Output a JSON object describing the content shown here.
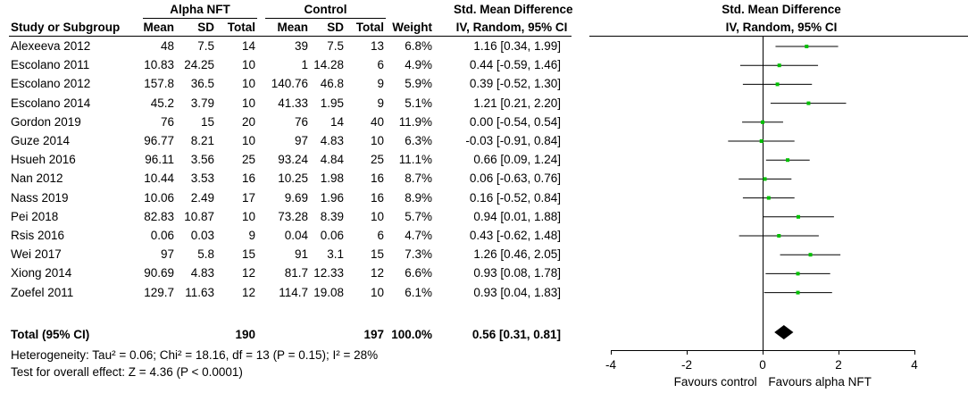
{
  "headers": {
    "group_alpha": "Alpha NFT",
    "group_control": "Control",
    "smd_left": "Std. Mean Difference",
    "smd_right": "Std. Mean Difference",
    "method_left": "IV, Random, 95% CI",
    "method_right": "IV, Random, 95% CI",
    "columns": [
      "Study or Subgroup",
      "Mean",
      "SD",
      "Total",
      "Mean",
      "SD",
      "Total",
      "Weight"
    ]
  },
  "studies": [
    {
      "name": "Alexeeva 2012",
      "a_mean": "48",
      "a_sd": "7.5",
      "a_total": "14",
      "c_mean": "39",
      "c_sd": "7.5",
      "c_total": "13",
      "weight": "6.8%",
      "ci": "1.16 [0.34, 1.99]"
    },
    {
      "name": "Escolano 2011",
      "a_mean": "10.83",
      "a_sd": "24.25",
      "a_total": "10",
      "c_mean": "1",
      "c_sd": "14.28",
      "c_total": "6",
      "weight": "4.9%",
      "ci": "0.44 [-0.59, 1.46]"
    },
    {
      "name": "Escolano 2012",
      "a_mean": "157.8",
      "a_sd": "36.5",
      "a_total": "10",
      "c_mean": "140.76",
      "c_sd": "46.8",
      "c_total": "9",
      "weight": "5.9%",
      "ci": "0.39 [-0.52, 1.30]"
    },
    {
      "name": "Escolano 2014",
      "a_mean": "45.2",
      "a_sd": "3.79",
      "a_total": "10",
      "c_mean": "41.33",
      "c_sd": "1.95",
      "c_total": "9",
      "weight": "5.1%",
      "ci": "1.21 [0.21, 2.20]"
    },
    {
      "name": "Gordon 2019",
      "a_mean": "76",
      "a_sd": "15",
      "a_total": "20",
      "c_mean": "76",
      "c_sd": "14",
      "c_total": "40",
      "weight": "11.9%",
      "ci": "0.00 [-0.54, 0.54]"
    },
    {
      "name": "Guze 2014",
      "a_mean": "96.77",
      "a_sd": "8.21",
      "a_total": "10",
      "c_mean": "97",
      "c_sd": "4.83",
      "c_total": "10",
      "weight": "6.3%",
      "ci": "-0.03 [-0.91, 0.84]"
    },
    {
      "name": "Hsueh 2016",
      "a_mean": "96.11",
      "a_sd": "3.56",
      "a_total": "25",
      "c_mean": "93.24",
      "c_sd": "4.84",
      "c_total": "25",
      "weight": "11.1%",
      "ci": "0.66 [0.09, 1.24]"
    },
    {
      "name": "Nan 2012",
      "a_mean": "10.44",
      "a_sd": "3.53",
      "a_total": "16",
      "c_mean": "10.25",
      "c_sd": "1.98",
      "c_total": "16",
      "weight": "8.7%",
      "ci": "0.06 [-0.63, 0.76]"
    },
    {
      "name": "Nass 2019",
      "a_mean": "10.06",
      "a_sd": "2.49",
      "a_total": "17",
      "c_mean": "9.69",
      "c_sd": "1.96",
      "c_total": "16",
      "weight": "8.9%",
      "ci": "0.16 [-0.52, 0.84]"
    },
    {
      "name": "Pei 2018",
      "a_mean": "82.83",
      "a_sd": "10.87",
      "a_total": "10",
      "c_mean": "73.28",
      "c_sd": "8.39",
      "c_total": "10",
      "weight": "5.7%",
      "ci": "0.94 [0.01, 1.88]"
    },
    {
      "name": "Rsis 2016",
      "a_mean": "0.06",
      "a_sd": "0.03",
      "a_total": "9",
      "c_mean": "0.04",
      "c_sd": "0.06",
      "c_total": "6",
      "weight": "4.7%",
      "ci": "0.43 [-0.62, 1.48]"
    },
    {
      "name": "Wei 2017",
      "a_mean": "97",
      "a_sd": "5.8",
      "a_total": "15",
      "c_mean": "91",
      "c_sd": "3.1",
      "c_total": "15",
      "weight": "7.3%",
      "ci": "1.26 [0.46, 2.05]"
    },
    {
      "name": "Xiong 2014",
      "a_mean": "90.69",
      "a_sd": "4.83",
      "a_total": "12",
      "c_mean": "81.7",
      "c_sd": "12.33",
      "c_total": "12",
      "weight": "6.6%",
      "ci": "0.93 [0.08, 1.78]"
    },
    {
      "name": "Zoefel 2011",
      "a_mean": "129.7",
      "a_sd": "11.63",
      "a_total": "12",
      "c_mean": "114.7",
      "c_sd": "19.08",
      "c_total": "10",
      "weight": "6.1%",
      "ci": "0.93 [0.04, 1.83]"
    }
  ],
  "total": {
    "label": "Total (95% CI)",
    "a_total": "190",
    "c_total": "197",
    "weight": "100.0%",
    "ci": "0.56 [0.31, 0.81]"
  },
  "heterogeneity": "Heterogeneity: Tau² = 0.06; Chi² = 18.16, df = 13 (P = 0.15); I² = 28%",
  "overall_effect": "Test for overall effect: Z = 4.36 (P < 0.0001)",
  "chart_data": {
    "type": "forest",
    "title": "Std. Mean Difference IV, Random, 95% CI",
    "xlim": [
      -4,
      4
    ],
    "ticks": [
      -4,
      -2,
      0,
      2,
      4
    ],
    "tick_labels": [
      "-4",
      "-2",
      "0",
      "2",
      "4"
    ],
    "favours_left": "Favours control",
    "favours_right": "Favours alpha NFT",
    "points": [
      {
        "study": "Alexeeva 2012",
        "smd": 1.16,
        "lo": 0.34,
        "hi": 1.99
      },
      {
        "study": "Escolano 2011",
        "smd": 0.44,
        "lo": -0.59,
        "hi": 1.46
      },
      {
        "study": "Escolano 2012",
        "smd": 0.39,
        "lo": -0.52,
        "hi": 1.3
      },
      {
        "study": "Escolano 2014",
        "smd": 1.21,
        "lo": 0.21,
        "hi": 2.2
      },
      {
        "study": "Gordon 2019",
        "smd": 0.0,
        "lo": -0.54,
        "hi": 0.54
      },
      {
        "study": "Guze 2014",
        "smd": -0.03,
        "lo": -0.91,
        "hi": 0.84
      },
      {
        "study": "Hsueh 2016",
        "smd": 0.66,
        "lo": 0.09,
        "hi": 1.24
      },
      {
        "study": "Nan 2012",
        "smd": 0.06,
        "lo": -0.63,
        "hi": 0.76
      },
      {
        "study": "Nass 2019",
        "smd": 0.16,
        "lo": -0.52,
        "hi": 0.84
      },
      {
        "study": "Pei 2018",
        "smd": 0.94,
        "lo": 0.01,
        "hi": 1.88
      },
      {
        "study": "Rsis 2016",
        "smd": 0.43,
        "lo": -0.62,
        "hi": 1.48
      },
      {
        "study": "Wei 2017",
        "smd": 1.26,
        "lo": 0.46,
        "hi": 2.05
      },
      {
        "study": "Xiong 2014",
        "smd": 0.93,
        "lo": 0.08,
        "hi": 1.78
      },
      {
        "study": "Zoefel 2011",
        "smd": 0.93,
        "lo": 0.04,
        "hi": 1.83
      }
    ],
    "pooled": {
      "smd": 0.56,
      "lo": 0.31,
      "hi": 0.81
    },
    "colors": {
      "point": "#00c000",
      "line": "#000000",
      "diamond": "#000000"
    }
  }
}
